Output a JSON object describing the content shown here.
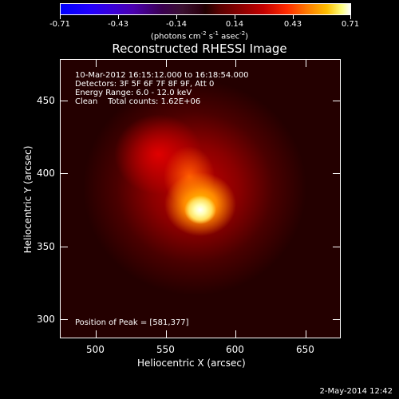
{
  "colorbar": {
    "ticks": [
      "-0.71",
      "-0.43",
      "-0.14",
      "0.14",
      "0.43",
      "0.71"
    ],
    "units": "(photons cm",
    "units_exp1": "-2",
    "units_mid": " s",
    "units_exp2": "-1",
    "units_mid2": " asec",
    "units_exp3": "-2",
    "units_end": ")"
  },
  "title": "Reconstructed RHESSI Image",
  "annotation": {
    "line1": "10-Mar-2012 16:15:12.000 to 16:18:54.000",
    "line2": "Detectors: 3F 5F 6F 7F 8F 9F, Att 0",
    "line3": "Energy Range: 6.0 - 12.0 keV",
    "line4": "Clean    Total counts: 1.62E+06",
    "peak": "Position of Peak = [581,377]"
  },
  "axes": {
    "x_label": "Heliocentric X (arcsec)",
    "y_label": "Heliocentric Y (arcsec)",
    "x_ticks": [
      "500",
      "550",
      "600",
      "650"
    ],
    "y_ticks": [
      "450",
      "400",
      "350",
      "300"
    ],
    "xlim": [
      478,
      670
    ],
    "ylim": [
      288,
      478
    ]
  },
  "peak_position": [
    581,
    377
  ],
  "footer_date": "2-May-2014 12:42"
}
